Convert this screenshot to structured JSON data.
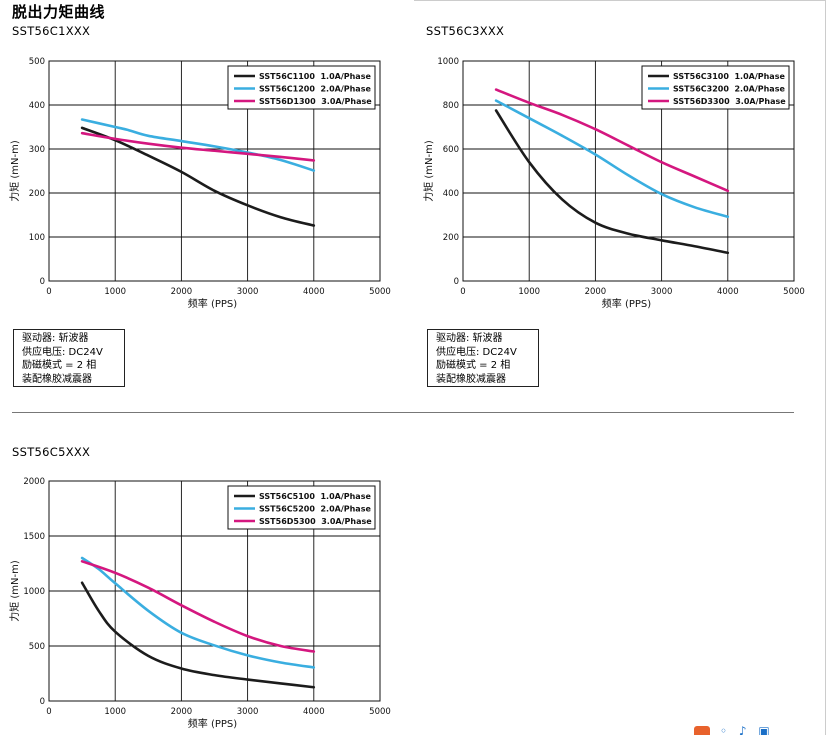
{
  "page_title": "脱出力矩曲线",
  "colors": {
    "black_series": "#1c1c1c",
    "blue_series": "#3aaee0",
    "pink_series": "#d4177f",
    "grid": "#111111"
  },
  "charts": [
    {
      "model_title": "SST56C1XXX",
      "spec": [
        "驱动器: 斩波器",
        "供应电压: DC24V",
        "励磁模式 = 2 相",
        "装配橡胶减震器"
      ]
    },
    {
      "model_title": "SST56C3XXX",
      "spec": [
        "驱动器: 斩波器",
        "供应电压: DC24V",
        "励磁模式 = 2 相",
        "装配橡胶减震器"
      ]
    },
    {
      "model_title": "SST56C5XXX"
    }
  ],
  "chart_data": [
    {
      "type": "line",
      "title": "SST56C1XXX",
      "xlabel": "频率 (PPS)",
      "ylabel": "力矩 (mN-m)",
      "xlim": [
        0,
        5000
      ],
      "ylim": [
        0,
        500
      ],
      "xticks": [
        0,
        1000,
        2000,
        3000,
        4000,
        5000
      ],
      "yticks": [
        0,
        100,
        200,
        300,
        400,
        500
      ],
      "grid": true,
      "legend_position": "top-right",
      "series": [
        {
          "name": "SST56C1100  1.0A/Phase",
          "color": "#1c1c1c",
          "x": [
            500,
            1000,
            1500,
            2000,
            2500,
            3000,
            3500,
            4000
          ],
          "y": [
            348,
            320,
            285,
            248,
            205,
            172,
            145,
            126
          ]
        },
        {
          "name": "SST56C1200  2.0A/Phase",
          "color": "#3aaee0",
          "x": [
            500,
            1000,
            1200,
            1500,
            2000,
            2500,
            3000,
            3500,
            4000
          ],
          "y": [
            367,
            350,
            343,
            330,
            318,
            306,
            292,
            275,
            251
          ]
        },
        {
          "name": "SST56D1300  3.0A/Phase",
          "color": "#d4177f",
          "x": [
            500,
            1000,
            1500,
            2000,
            2500,
            3000,
            3500,
            4000
          ],
          "y": [
            336,
            323,
            312,
            303,
            296,
            289,
            282,
            274
          ]
        }
      ]
    },
    {
      "type": "line",
      "title": "SST56C3XXX",
      "xlabel": "频率 (PPS)",
      "ylabel": "力矩 (mN-m)",
      "xlim": [
        0,
        5000
      ],
      "ylim": [
        0,
        1000
      ],
      "xticks": [
        0,
        1000,
        2000,
        3000,
        4000,
        5000
      ],
      "yticks": [
        0,
        200,
        400,
        600,
        800,
        1000
      ],
      "grid": true,
      "legend_position": "top-right",
      "series": [
        {
          "name": "SST56C3100  1.0A/Phase",
          "color": "#1c1c1c",
          "x": [
            500,
            1000,
            1500,
            2000,
            2500,
            3000,
            3500,
            4000
          ],
          "y": [
            775,
            540,
            370,
            265,
            215,
            185,
            158,
            128
          ]
        },
        {
          "name": "SST56C3200  2.0A/Phase",
          "color": "#3aaee0",
          "x": [
            500,
            1000,
            1500,
            2000,
            2500,
            3000,
            3500,
            4000
          ],
          "y": [
            820,
            740,
            660,
            575,
            480,
            395,
            335,
            292
          ]
        },
        {
          "name": "SST56D3300  3.0A/Phase",
          "color": "#d4177f",
          "x": [
            500,
            1000,
            1500,
            2000,
            2500,
            3000,
            3500,
            4000
          ],
          "y": [
            870,
            810,
            755,
            690,
            615,
            540,
            475,
            410
          ]
        }
      ]
    },
    {
      "type": "line",
      "title": "SST56C5XXX",
      "xlabel": "频率 (PPS)",
      "ylabel": "力矩 (mN-m)",
      "xlim": [
        0,
        5000
      ],
      "ylim": [
        0,
        2000
      ],
      "xticks": [
        0,
        1000,
        2000,
        3000,
        4000,
        5000
      ],
      "yticks": [
        0,
        500,
        1000,
        1500,
        2000
      ],
      "grid": true,
      "legend_position": "top-right",
      "series": [
        {
          "name": "SST56C5100  1.0A/Phase",
          "color": "#1c1c1c",
          "x": [
            500,
            750,
            1000,
            1500,
            2000,
            2500,
            3000,
            3500,
            4000
          ],
          "y": [
            1075,
            820,
            630,
            410,
            295,
            235,
            195,
            160,
            125
          ]
        },
        {
          "name": "SST56C5200  2.0A/Phase",
          "color": "#3aaee0",
          "x": [
            500,
            750,
            1000,
            1500,
            2000,
            2500,
            3000,
            3500,
            4000
          ],
          "y": [
            1300,
            1200,
            1070,
            820,
            620,
            505,
            415,
            350,
            305
          ]
        },
        {
          "name": "SST56D5300  3.0A/Phase",
          "color": "#d4177f",
          "x": [
            500,
            1000,
            1500,
            2000,
            2500,
            3000,
            3500,
            4000
          ],
          "y": [
            1270,
            1165,
            1030,
            870,
            720,
            590,
            500,
            450
          ]
        }
      ]
    }
  ]
}
